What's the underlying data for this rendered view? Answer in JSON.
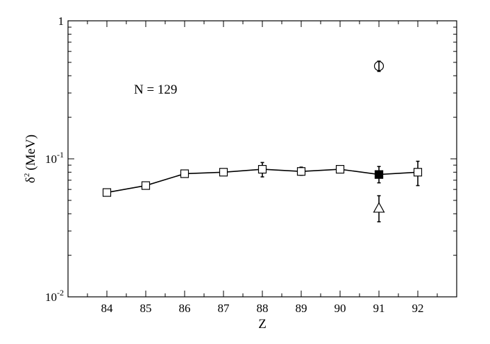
{
  "chart_data": {
    "type": "scatter",
    "xlabel": "Z",
    "ylabel": "δ² (MeV)",
    "ylabel_parts": {
      "symbol": "δ",
      "exponent": "2",
      "unit": "(MeV)"
    },
    "yscale": "log",
    "xlim": [
      83,
      93
    ],
    "ylim": [
      0.01,
      1
    ],
    "x_ticks": [
      84,
      85,
      86,
      87,
      88,
      89,
      90,
      91,
      92
    ],
    "y_ticks": [
      {
        "value": 1,
        "mantissa": "1",
        "exponent": ""
      },
      {
        "value": 0.1,
        "mantissa": "10",
        "exponent": "-1"
      },
      {
        "value": 0.01,
        "mantissa": "10",
        "exponent": "-2"
      }
    ],
    "annotation": "N = 129",
    "grid": false,
    "series": [
      {
        "marker": "open-square",
        "line": true,
        "points": [
          {
            "x": 84,
            "y": 0.057
          },
          {
            "x": 85,
            "y": 0.064
          },
          {
            "x": 86,
            "y": 0.078
          },
          {
            "x": 87,
            "y": 0.08
          },
          {
            "x": 88,
            "y": 0.084,
            "err_low": 0.074,
            "err_high": 0.094
          },
          {
            "x": 89,
            "y": 0.081,
            "err_low": 0.076,
            "err_high": 0.087
          },
          {
            "x": 90,
            "y": 0.084
          },
          {
            "x": 91,
            "y": 0.077
          },
          {
            "x": 92,
            "y": 0.08,
            "err_low": 0.064,
            "err_high": 0.096
          }
        ]
      },
      {
        "marker": "filled-square",
        "line": false,
        "points": [
          {
            "x": 91,
            "y": 0.077,
            "err_low": 0.067,
            "err_high": 0.088
          }
        ]
      },
      {
        "marker": "open-circle",
        "line": false,
        "points": [
          {
            "x": 91,
            "y": 0.47,
            "err_low": 0.43,
            "err_high": 0.51
          }
        ]
      },
      {
        "marker": "open-triangle",
        "line": false,
        "points": [
          {
            "x": 91,
            "y": 0.044,
            "err_low": 0.035,
            "err_high": 0.054
          }
        ]
      }
    ]
  }
}
